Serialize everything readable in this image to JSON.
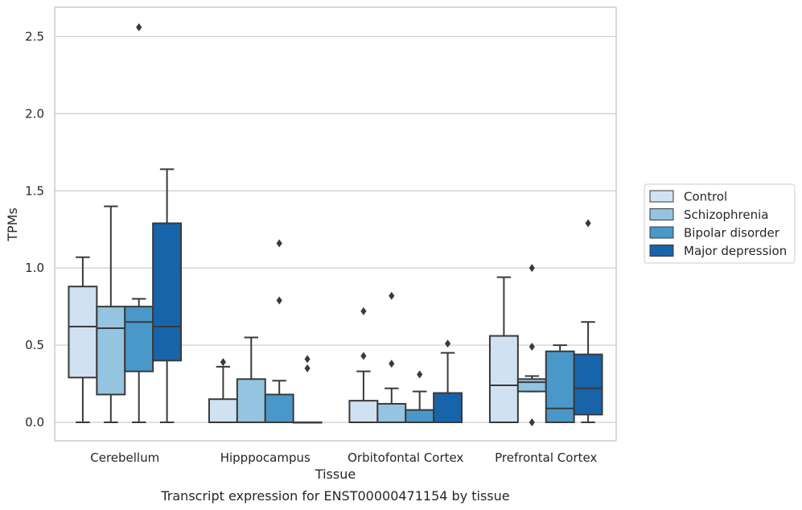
{
  "chart_data": {
    "type": "box",
    "caption": "Transcript expression for ENST00000471154 by tissue",
    "xlabel": "Tissue",
    "ylabel": "TPMs",
    "ylim": [
      -0.12,
      2.69
    ],
    "yticks": [
      0.0,
      0.5,
      1.0,
      1.5,
      2.0,
      2.5
    ],
    "ytick_labels": [
      "0.0",
      "0.5",
      "1.0",
      "1.5",
      "2.0",
      "2.5"
    ],
    "grid": "horizontal",
    "legend_position": "right",
    "categories": [
      "Cerebellum",
      "Hipppocampus",
      "Orbitofontal Cortex",
      "Prefrontal Cortex"
    ],
    "series": [
      {
        "name": "Control",
        "color": "#d0e1f2",
        "boxes": [
          {
            "whislo": 0.0,
            "q1": 0.29,
            "med": 0.62,
            "q3": 0.88,
            "whishi": 1.07,
            "fliers": []
          },
          {
            "whislo": 0.0,
            "q1": 0.0,
            "med": 0.0,
            "q3": 0.15,
            "whishi": 0.36,
            "fliers": [
              0.39
            ]
          },
          {
            "whislo": 0.0,
            "q1": 0.0,
            "med": 0.0,
            "q3": 0.14,
            "whishi": 0.33,
            "fliers": [
              0.43,
              0.72
            ]
          },
          {
            "whislo": 0.0,
            "q1": 0.0,
            "med": 0.24,
            "q3": 0.56,
            "whishi": 0.94,
            "fliers": []
          }
        ]
      },
      {
        "name": "Schizophrenia",
        "color": "#94c4df",
        "boxes": [
          {
            "whislo": 0.0,
            "q1": 0.18,
            "med": 0.61,
            "q3": 0.75,
            "whishi": 1.4,
            "fliers": []
          },
          {
            "whislo": 0.0,
            "q1": 0.0,
            "med": 0.0,
            "q3": 0.28,
            "whishi": 0.55,
            "fliers": []
          },
          {
            "whislo": 0.0,
            "q1": 0.0,
            "med": 0.0,
            "q3": 0.12,
            "whishi": 0.22,
            "fliers": [
              0.38,
              0.82
            ]
          },
          {
            "whislo": 0.2,
            "q1": 0.2,
            "med": 0.26,
            "q3": 0.28,
            "whishi": 0.3,
            "fliers": [
              0.0,
              0.49,
              1.0
            ]
          }
        ]
      },
      {
        "name": "Bipolar disorder",
        "color": "#4a98c9",
        "boxes": [
          {
            "whislo": 0.0,
            "q1": 0.33,
            "med": 0.65,
            "q3": 0.75,
            "whishi": 0.8,
            "fliers": [
              2.56
            ]
          },
          {
            "whislo": 0.0,
            "q1": 0.0,
            "med": 0.0,
            "q3": 0.18,
            "whishi": 0.27,
            "fliers": [
              0.79,
              1.16
            ]
          },
          {
            "whislo": 0.0,
            "q1": 0.0,
            "med": 0.0,
            "q3": 0.08,
            "whishi": 0.2,
            "fliers": [
              0.31
            ]
          },
          {
            "whislo": 0.0,
            "q1": 0.0,
            "med": 0.09,
            "q3": 0.46,
            "whishi": 0.5,
            "fliers": []
          }
        ]
      },
      {
        "name": "Major depression",
        "color": "#1764ab",
        "boxes": [
          {
            "whislo": 0.0,
            "q1": 0.4,
            "med": 0.62,
            "q3": 1.29,
            "whishi": 1.64,
            "fliers": []
          },
          {
            "whislo": 0.0,
            "q1": 0.0,
            "med": 0.0,
            "q3": 0.0,
            "whishi": 0.0,
            "fliers": [
              0.35,
              0.41
            ]
          },
          {
            "whislo": 0.0,
            "q1": 0.0,
            "med": 0.0,
            "q3": 0.19,
            "whishi": 0.45,
            "fliers": [
              0.51
            ]
          },
          {
            "whislo": 0.0,
            "q1": 0.05,
            "med": 0.22,
            "q3": 0.44,
            "whishi": 0.65,
            "fliers": [
              1.29
            ]
          }
        ]
      }
    ]
  }
}
